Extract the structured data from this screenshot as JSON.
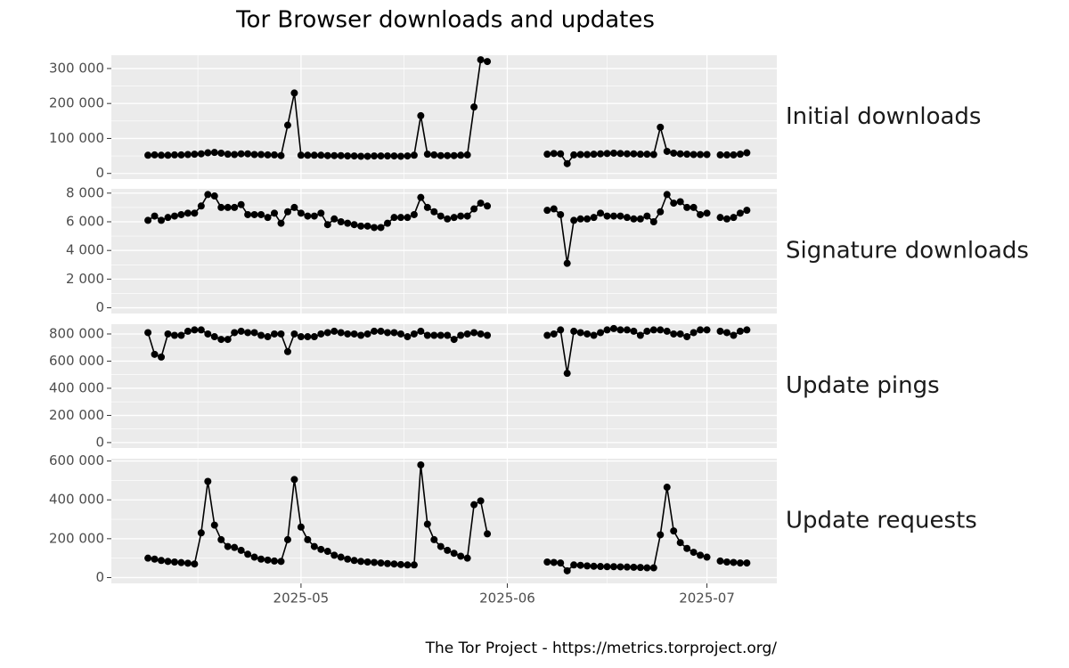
{
  "chart_data": {
    "type": "line",
    "title": "Tor Browser downloads and updates",
    "caption": "The Tor Project - https://metrics.torproject.org/",
    "color": "#000000",
    "grid": true,
    "categories": [
      null,
      null,
      null,
      null,
      null,
      null,
      null,
      null,
      null,
      null,
      null,
      null,
      null,
      null,
      null,
      null,
      null,
      null,
      null,
      null,
      null,
      null,
      null,
      null,
      null,
      null,
      null,
      null,
      "2025-05",
      null,
      null,
      null,
      null,
      null,
      null,
      null,
      null,
      null,
      null,
      null,
      null,
      null,
      null,
      null,
      null,
      null,
      null,
      null,
      null,
      null,
      null,
      null,
      null,
      null,
      null,
      null,
      null,
      null,
      null,
      "2025-06",
      null,
      null,
      null,
      null,
      null,
      null,
      null,
      null,
      null,
      null,
      null,
      null,
      null,
      null,
      null,
      null,
      null,
      null,
      null,
      null,
      null,
      null,
      null,
      null,
      null,
      null,
      null,
      null,
      null,
      "2025-07",
      null,
      null,
      null,
      null,
      null,
      null,
      null,
      null,
      null,
      null
    ],
    "panels": [
      {
        "name": "Initial downloads",
        "ylim": [
          -16000,
          338000
        ],
        "yticks": [
          0,
          {
            "value": 100000,
            "label": "100 000"
          },
          {
            "value": 200000,
            "label": "200 000"
          },
          {
            "value": 300000,
            "label": "300 000"
          }
        ],
        "values": [
          null,
          null,
          null,
          null,
          null,
          52000,
          53000,
          52000,
          52000,
          53000,
          53000,
          54000,
          55000,
          56000,
          59000,
          60000,
          58000,
          55000,
          54000,
          56000,
          56000,
          54000,
          54000,
          53000,
          53000,
          51000,
          138000,
          230000,
          52000,
          52000,
          52000,
          52000,
          51000,
          51000,
          51000,
          50000,
          50000,
          49000,
          49000,
          50000,
          50000,
          50000,
          50000,
          49000,
          50000,
          52000,
          165000,
          55000,
          53000,
          51000,
          51000,
          51000,
          52000,
          53000,
          190000,
          325000,
          320000,
          null,
          null,
          null,
          null,
          null,
          null,
          null,
          null,
          55000,
          57000,
          56000,
          28000,
          53000,
          54000,
          54000,
          55000,
          56000,
          57000,
          58000,
          57000,
          56000,
          56000,
          55000,
          55000,
          54000,
          132000,
          63000,
          58000,
          56000,
          55000,
          54000,
          54000,
          54000,
          null,
          53000,
          53000,
          53000,
          55000,
          59000,
          null,
          null,
          null,
          null
        ]
      },
      {
        "name": "Signature downloads",
        "ylim": [
          -400,
          8300
        ],
        "yticks": [
          0,
          {
            "value": 2000,
            "label": "2 000"
          },
          {
            "value": 4000,
            "label": "4 000"
          },
          {
            "value": 6000,
            "label": "6 000"
          },
          {
            "value": 8000,
            "label": "8 000"
          }
        ],
        "values": [
          null,
          null,
          null,
          null,
          null,
          6100,
          6400,
          6100,
          6300,
          6400,
          6500,
          6600,
          6600,
          7100,
          7900,
          7800,
          7000,
          7000,
          7000,
          7200,
          6500,
          6500,
          6500,
          6300,
          6600,
          5900,
          6700,
          7000,
          6600,
          6400,
          6400,
          6600,
          5800,
          6200,
          6000,
          5900,
          5800,
          5700,
          5700,
          5600,
          5600,
          5900,
          6300,
          6300,
          6300,
          6500,
          7700,
          7000,
          6700,
          6400,
          6200,
          6300,
          6400,
          6400,
          6900,
          7300,
          7100,
          null,
          null,
          null,
          null,
          null,
          null,
          null,
          null,
          6800,
          6900,
          6500,
          3100,
          6100,
          6200,
          6200,
          6300,
          6600,
          6400,
          6400,
          6400,
          6300,
          6200,
          6200,
          6400,
          6000,
          6700,
          7900,
          7300,
          7400,
          7000,
          7000,
          6500,
          6600,
          null,
          6300,
          6200,
          6300,
          6600,
          6800,
          null,
          null,
          null,
          null
        ]
      },
      {
        "name": "Update pings",
        "ylim": [
          -40000,
          872000
        ],
        "yticks": [
          0,
          {
            "value": 200000,
            "label": "200 000"
          },
          {
            "value": 400000,
            "label": "400 000"
          },
          {
            "value": 600000,
            "label": "600 000"
          },
          {
            "value": 800000,
            "label": "800 000"
          }
        ],
        "values": [
          null,
          null,
          null,
          null,
          null,
          810000,
          650000,
          630000,
          800000,
          790000,
          790000,
          820000,
          830000,
          830000,
          800000,
          780000,
          760000,
          760000,
          810000,
          820000,
          810000,
          810000,
          790000,
          780000,
          800000,
          800000,
          670000,
          800000,
          780000,
          780000,
          780000,
          800000,
          810000,
          820000,
          810000,
          800000,
          800000,
          790000,
          800000,
          820000,
          820000,
          810000,
          810000,
          800000,
          780000,
          800000,
          820000,
          790000,
          790000,
          790000,
          790000,
          760000,
          790000,
          800000,
          810000,
          800000,
          790000,
          null,
          null,
          null,
          null,
          null,
          null,
          null,
          null,
          790000,
          800000,
          830000,
          510000,
          820000,
          810000,
          800000,
          790000,
          810000,
          830000,
          840000,
          830000,
          830000,
          820000,
          790000,
          820000,
          830000,
          830000,
          820000,
          800000,
          800000,
          780000,
          810000,
          830000,
          830000,
          null,
          820000,
          810000,
          790000,
          820000,
          830000,
          null,
          null,
          null,
          null
        ]
      },
      {
        "name": "Update requests",
        "ylim": [
          -30000,
          612000
        ],
        "yticks": [
          0,
          {
            "value": 200000,
            "label": "200 000"
          },
          {
            "value": 400000,
            "label": "400 000"
          },
          {
            "value": 600000,
            "label": "600 000"
          }
        ],
        "values": [
          null,
          null,
          null,
          null,
          null,
          100000,
          95000,
          88000,
          83000,
          80000,
          77000,
          74000,
          70000,
          230000,
          495000,
          270000,
          195000,
          160000,
          155000,
          140000,
          120000,
          105000,
          95000,
          90000,
          85000,
          83000,
          195000,
          505000,
          260000,
          195000,
          160000,
          145000,
          135000,
          115000,
          105000,
          95000,
          88000,
          83000,
          80000,
          78000,
          75000,
          72000,
          70000,
          67000,
          65000,
          65000,
          580000,
          275000,
          195000,
          160000,
          140000,
          125000,
          110000,
          100000,
          375000,
          395000,
          225000,
          null,
          null,
          null,
          null,
          null,
          null,
          null,
          null,
          80000,
          78000,
          75000,
          35000,
          65000,
          63000,
          60000,
          58000,
          57000,
          56000,
          56000,
          55000,
          54000,
          53000,
          52000,
          50000,
          50000,
          220000,
          465000,
          240000,
          180000,
          150000,
          130000,
          115000,
          105000,
          null,
          85000,
          80000,
          78000,
          75000,
          75000,
          null,
          null,
          null,
          null
        ]
      }
    ]
  }
}
